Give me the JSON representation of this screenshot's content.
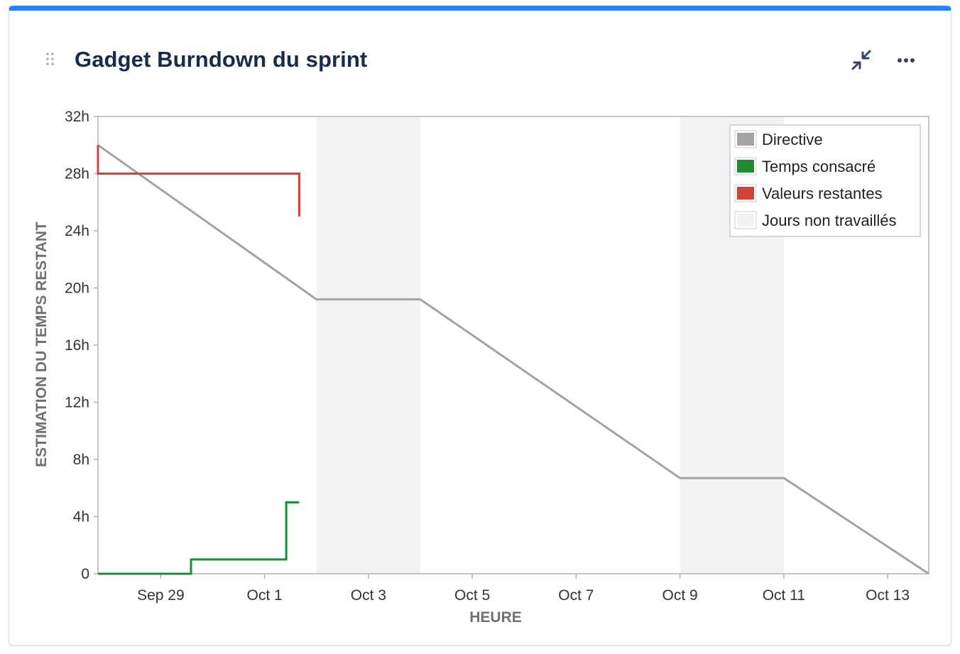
{
  "gadget": {
    "title": "Gadget Burndown du sprint",
    "accent_color": "#2684ff",
    "icons": {
      "drag": "drag-handle-icon",
      "collapse": "collapse-arrows-icon",
      "more": "more-horizontal-icon"
    }
  },
  "chart_data": {
    "type": "line",
    "ylabel": "ESTIMATION DU TEMPS RESTANT",
    "xlabel": "HEURE",
    "ylim": [
      0,
      32
    ],
    "y_ticks": [
      {
        "value": 0,
        "label": "0"
      },
      {
        "value": 4,
        "label": "4h"
      },
      {
        "value": 8,
        "label": "8h"
      },
      {
        "value": 12,
        "label": "12h"
      },
      {
        "value": 16,
        "label": "16h"
      },
      {
        "value": 20,
        "label": "20h"
      },
      {
        "value": 24,
        "label": "24h"
      },
      {
        "value": 28,
        "label": "28h"
      },
      {
        "value": 32,
        "label": "32h"
      }
    ],
    "xlim": [
      "2025-09-28T07:00",
      "2025-10-14T07:00"
    ],
    "x_ticks": [
      {
        "value": "2025-09-29T12:00",
        "label": "Sep 29"
      },
      {
        "value": "2025-10-01T12:00",
        "label": "Oct 1"
      },
      {
        "value": "2025-10-03T12:00",
        "label": "Oct 3"
      },
      {
        "value": "2025-10-05T12:00",
        "label": "Oct 5"
      },
      {
        "value": "2025-10-07T12:00",
        "label": "Oct 7"
      },
      {
        "value": "2025-10-09T12:00",
        "label": "Oct 9"
      },
      {
        "value": "2025-10-11T12:00",
        "label": "Oct 11"
      },
      {
        "value": "2025-10-13T12:00",
        "label": "Oct 13"
      }
    ],
    "non_working_days": [
      {
        "start": "2025-10-02T12:00",
        "end": "2025-10-04T12:00"
      },
      {
        "start": "2025-10-09T12:00",
        "end": "2025-10-11T12:00"
      }
    ],
    "series": [
      {
        "name": "Directive",
        "color": "#a3a3a3",
        "step": false,
        "points": [
          {
            "x": "2025-09-28T07:00",
            "y": 30.0
          },
          {
            "x": "2025-10-02T12:00",
            "y": 19.2
          },
          {
            "x": "2025-10-04T12:00",
            "y": 19.2
          },
          {
            "x": "2025-10-09T12:00",
            "y": 6.7
          },
          {
            "x": "2025-10-11T12:00",
            "y": 6.7
          },
          {
            "x": "2025-10-14T07:00",
            "y": 0
          }
        ]
      },
      {
        "name": "Temps consacré",
        "color": "#1f8a30",
        "step": true,
        "points": [
          {
            "x": "2025-09-28T07:00",
            "y": 0
          },
          {
            "x": "2025-09-30T02:00",
            "y": 0
          },
          {
            "x": "2025-09-30T02:00",
            "y": 1
          },
          {
            "x": "2025-10-01T22:00",
            "y": 1
          },
          {
            "x": "2025-10-01T22:00",
            "y": 5
          },
          {
            "x": "2025-10-02T04:00",
            "y": 5
          }
        ]
      },
      {
        "name": "Valeurs restantes",
        "color": "#d04437",
        "step": true,
        "points": [
          {
            "x": "2025-09-28T07:00",
            "y": 30
          },
          {
            "x": "2025-09-28T07:00",
            "y": 28
          },
          {
            "x": "2025-10-02T04:00",
            "y": 28
          },
          {
            "x": "2025-10-02T04:00",
            "y": 25
          }
        ]
      }
    ],
    "legend": {
      "placement": "top-right",
      "entries": [
        {
          "label": "Directive",
          "color": "#a3a3a3"
        },
        {
          "label": "Temps consacré",
          "color": "#1f8a30"
        },
        {
          "label": "Valeurs restantes",
          "color": "#d04437"
        },
        {
          "label": "Jours non travaillés",
          "color": "#f2f2f2"
        }
      ]
    },
    "non_working_color": "#f2f2f2",
    "grid": false
  }
}
